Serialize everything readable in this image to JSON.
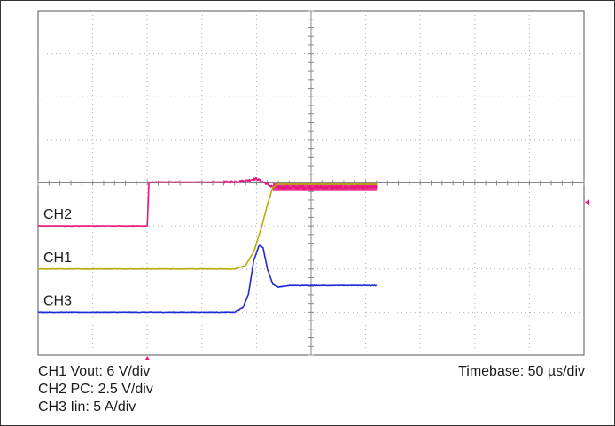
{
  "chart_data": {
    "type": "line",
    "title": "",
    "xlabel": "",
    "ylabel": "",
    "x_unit": "us",
    "x_divisions": 10,
    "y_divisions": 8,
    "xlim": [
      0,
      500
    ],
    "grid": true,
    "timebase_label": "Timebase: 50 µs/div",
    "channel_scales": [
      "CH1 Vout: 6 V/div",
      "CH2 PC: 2.5 V/div",
      "CH3 Iin: 5 A/div"
    ],
    "series": [
      {
        "name": "CH2",
        "color": "#e8177f",
        "baseline_div": 3.0,
        "points_div": [
          [
            0.0,
            3.0
          ],
          [
            1.97,
            3.0
          ],
          [
            2.0,
            3.0
          ],
          [
            2.03,
            4.0
          ],
          [
            2.1,
            4.02
          ],
          [
            3.5,
            4.02
          ],
          [
            3.8,
            4.05
          ],
          [
            4.0,
            4.1
          ],
          [
            4.3,
            3.9
          ],
          [
            6.2,
            3.9
          ]
        ]
      },
      {
        "name": "CH1",
        "color": "#b5ad0e",
        "baseline_div": 2.0,
        "points_div": [
          [
            0.0,
            2.0
          ],
          [
            3.6,
            2.0
          ],
          [
            3.8,
            2.08
          ],
          [
            3.95,
            2.4
          ],
          [
            4.1,
            3.0
          ],
          [
            4.2,
            3.5
          ],
          [
            4.3,
            3.9
          ],
          [
            4.4,
            3.97
          ],
          [
            6.2,
            3.97
          ]
        ]
      },
      {
        "name": "CH3",
        "color": "#1f2bd6",
        "baseline_div": 1.0,
        "points_div": [
          [
            0.0,
            1.0
          ],
          [
            3.6,
            1.0
          ],
          [
            3.75,
            1.1
          ],
          [
            3.85,
            1.4
          ],
          [
            3.95,
            2.2
          ],
          [
            4.05,
            2.55
          ],
          [
            4.12,
            2.5
          ],
          [
            4.2,
            2.0
          ],
          [
            4.3,
            1.65
          ],
          [
            4.4,
            1.58
          ],
          [
            4.6,
            1.62
          ],
          [
            6.2,
            1.62
          ]
        ]
      }
    ]
  }
}
